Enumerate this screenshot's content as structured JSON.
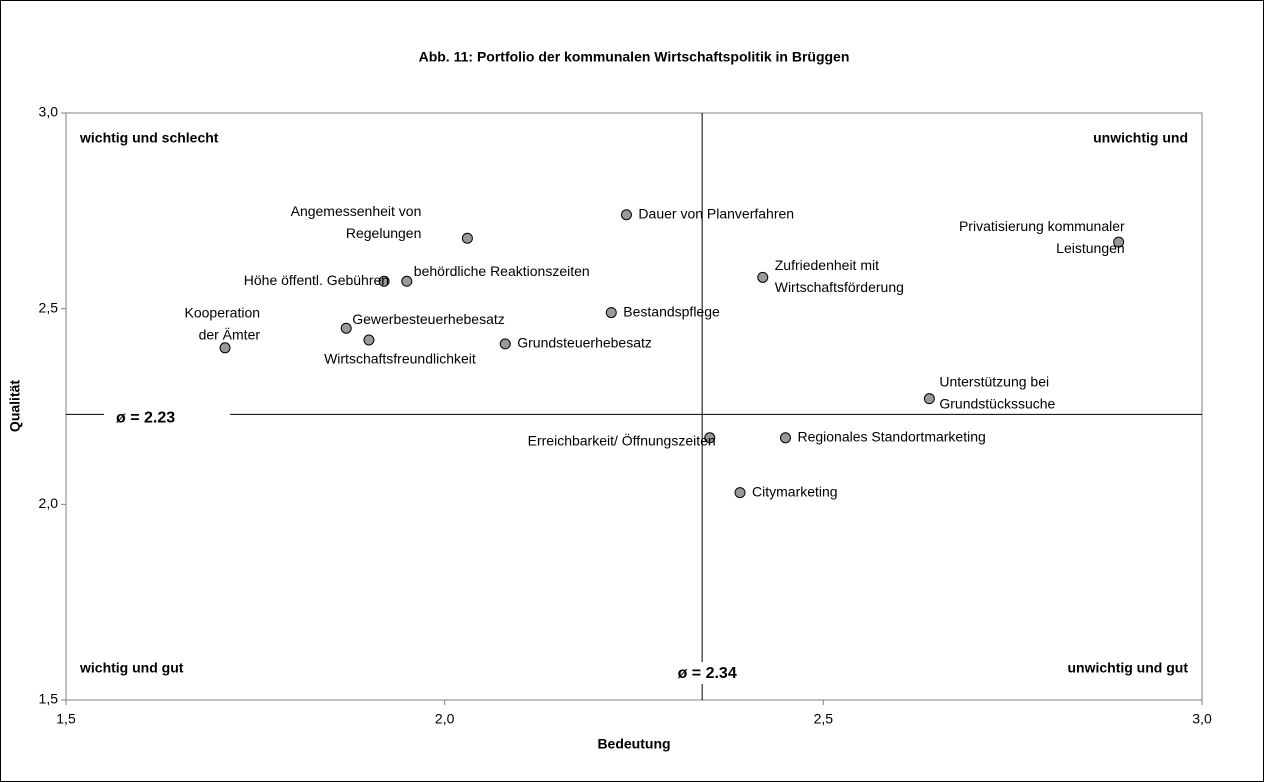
{
  "chart_data": {
    "type": "scatter",
    "title": "Abb. 11: Portfolio der kommunalen Wirtschaftspolitik in Brüggen",
    "x_label": "Bedeutung",
    "y_label": "Qualität",
    "x": [
      2.24,
      2.03,
      2.89,
      2.42,
      1.92,
      1.95,
      2.22,
      1.87,
      1.9,
      2.08,
      1.71,
      2.64,
      2.35,
      2.45,
      2.39
    ],
    "values": [
      2.74,
      2.68,
      2.67,
      2.58,
      2.57,
      2.57,
      2.49,
      2.45,
      2.42,
      2.41,
      2.4,
      2.27,
      2.17,
      2.17,
      2.03
    ],
    "labels": [
      [
        "Dauer von Planverfahren"
      ],
      [
        "Angemessenheit von",
        "Regelungen"
      ],
      [
        "Privatisierung kommunaler",
        "Leistungen"
      ],
      [
        "Zufriedenheit mit",
        "Wirtschaftsförderung"
      ],
      [
        "Höhe öffentl. Gebühren"
      ],
      [
        "behördliche Reaktionszeiten"
      ],
      [
        "Bestandspflege"
      ],
      [
        "Gewerbesteuerhebesatz"
      ],
      [
        "Wirtschaftsfreundlichkeit"
      ],
      [
        "Grundsteuerhebesatz"
      ],
      [
        "Kooperation",
        "der Ämter"
      ],
      [
        "Unterstützung bei",
        "Grundstückssuche"
      ],
      [
        "Erreichbarkeit/ Öffnungszeiten"
      ],
      [
        "Regionales Standortmarketing"
      ],
      [
        "Citymarketing"
      ]
    ],
    "color": "#999999",
    "xlim": [
      1.5,
      3.0
    ],
    "xticks": [
      {
        "value": 1.5,
        "label": "1,5"
      },
      {
        "value": 2.0,
        "label": "2,0"
      },
      {
        "value": 2.5,
        "label": "2,5"
      },
      {
        "value": 3.0,
        "label": "3,0"
      }
    ],
    "ylim": [
      1.5,
      3.0
    ],
    "yticks": [
      {
        "value": 1.5,
        "label": "1,5"
      },
      {
        "value": 2.0,
        "label": "2,0"
      },
      {
        "value": 2.5,
        "label": "2,5"
      },
      {
        "value": 3.0,
        "label": "3,0"
      }
    ],
    "mean_lines": {
      "x": {
        "value": 2.34,
        "label": "ø = 2.34"
      },
      "y": {
        "value": 2.23,
        "label": "ø = 2.23"
      }
    },
    "quadrant_labels": {
      "top_left": "wichtig und schlecht",
      "top_right": "unwichtig und",
      "bottom_left": "wichtig und gut",
      "bottom_right": "unwichtig und gut"
    }
  }
}
